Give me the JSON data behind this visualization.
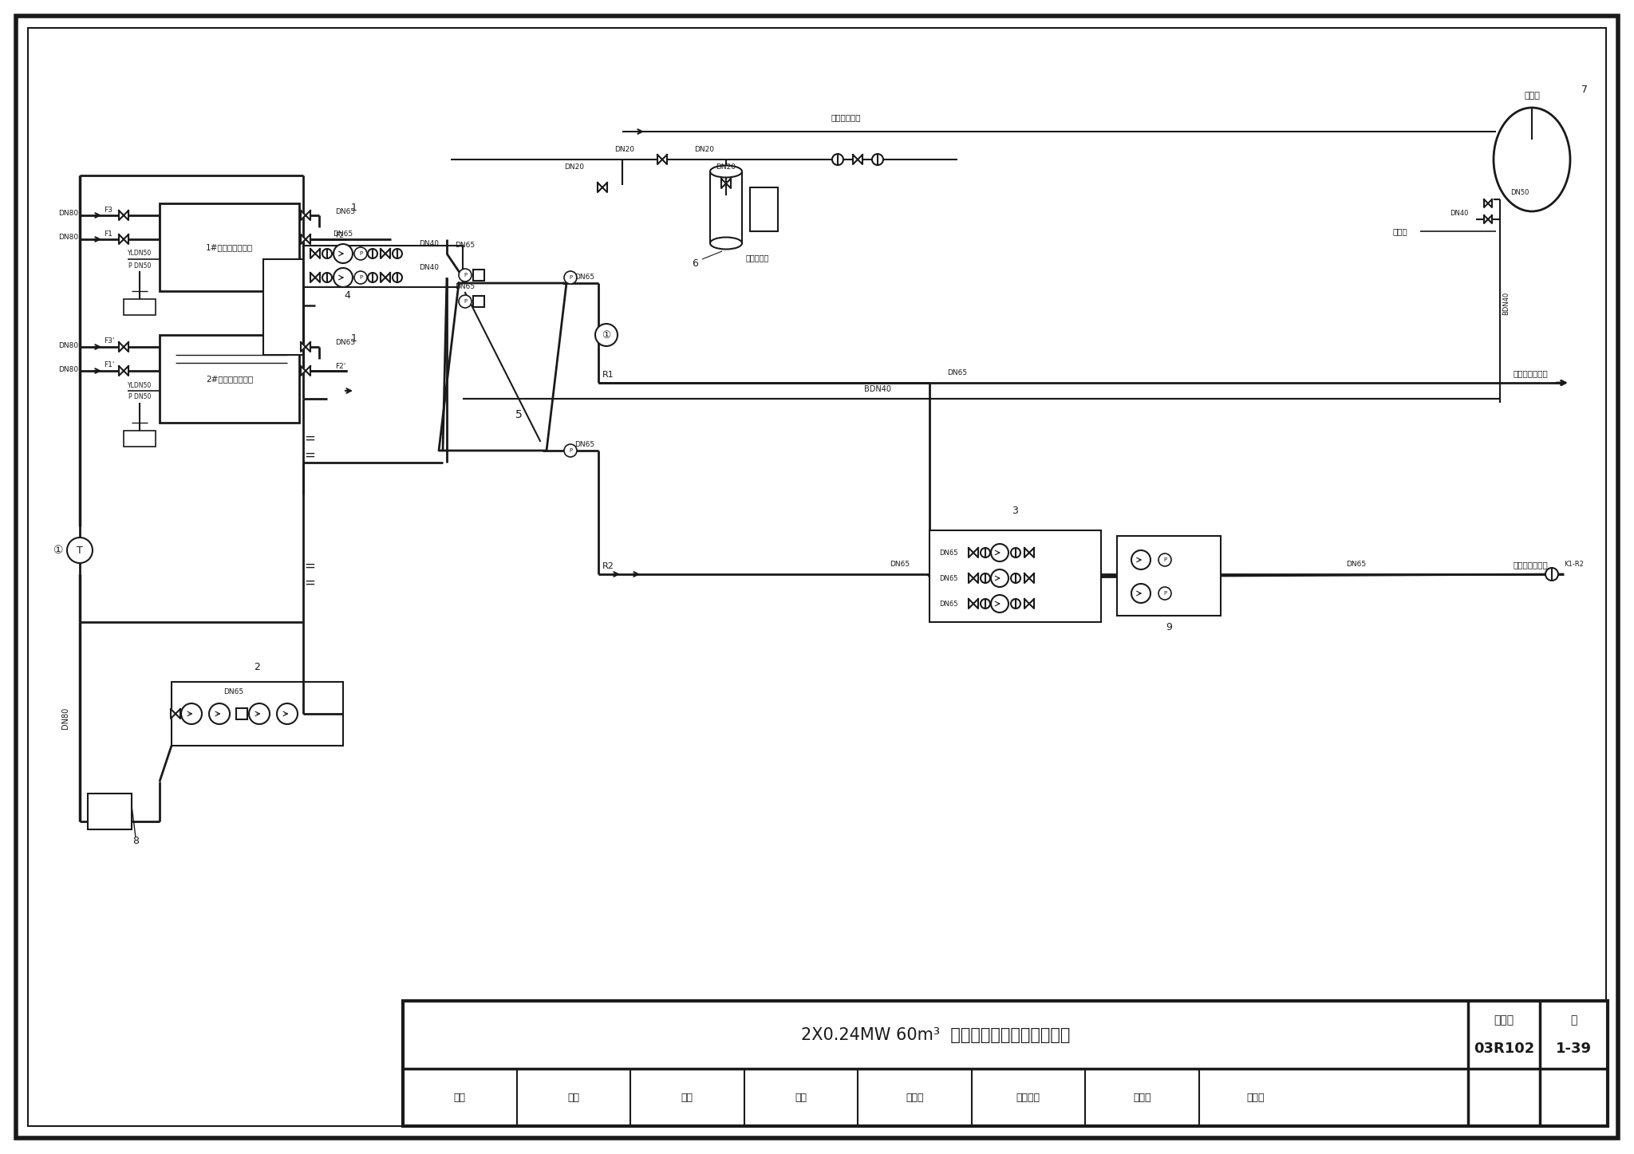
{
  "bg_color": "#ffffff",
  "line_color": "#1a1a1a",
  "fig_width": 20.48,
  "fig_height": 14.47,
  "title_main": "2X0.24MW 60m³  蓄热式电锅炉房热力系统图",
  "title_atlas_label": "图集号",
  "title_atlas_num": "03R102",
  "title_page_label": "页",
  "title_page_num": "1-39",
  "bottom_row": [
    "审核",
    "展力",
    "设计",
    "校对",
    "邵小珍",
    "石内设计",
    "朱来林",
    "孙兴条"
  ],
  "label_supply": "接采暖用户供水",
  "label_return": "接采暖回水管道",
  "label_water": "接自来水管道",
  "label_softener": "软化水装置",
  "label_vessel": "定压罐",
  "label_grounding": "接地片",
  "boiler1_label": "1#电加热蓄热水筒",
  "boiler2_label": "2#电加热蓄热水筒"
}
